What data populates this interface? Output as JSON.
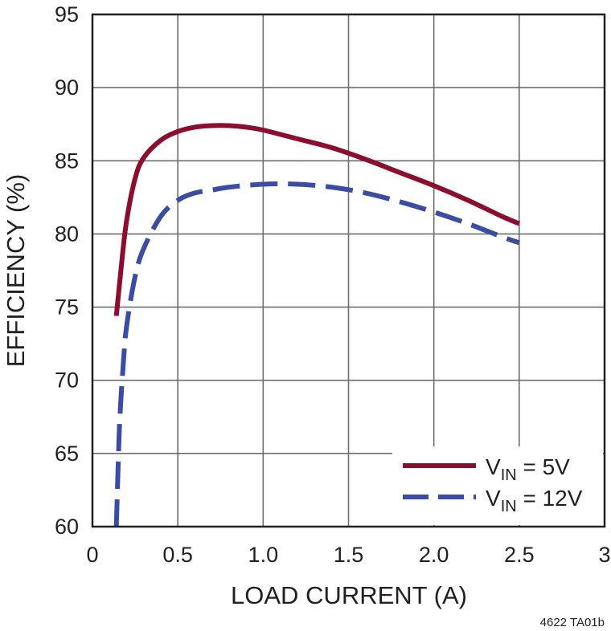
{
  "chart_data": {
    "type": "line",
    "title": "",
    "xlabel": "LOAD CURRENT (A)",
    "ylabel": "EFFICIENCY (%)",
    "xlim": [
      0,
      3
    ],
    "ylim": [
      60,
      95
    ],
    "x_ticks": [
      0,
      0.5,
      1.0,
      1.5,
      2.0,
      2.5,
      3
    ],
    "x_tick_labels": [
      "0",
      "0.5",
      "1.0",
      "1.5",
      "2.0",
      "2.5",
      "3"
    ],
    "y_ticks": [
      60,
      65,
      70,
      75,
      80,
      85,
      90,
      95
    ],
    "y_tick_labels": [
      "60",
      "65",
      "70",
      "75",
      "80",
      "85",
      "90",
      "95"
    ],
    "grid": true,
    "legend_position": "bottom-right",
    "series": [
      {
        "name": "VIN = 5V",
        "legend": {
          "main": "V",
          "sub": "IN",
          "rest": " = 5V"
        },
        "color": "#8b0e2e",
        "style": "solid",
        "x": [
          0.14,
          0.17,
          0.2,
          0.25,
          0.3,
          0.4,
          0.5,
          0.6,
          0.7,
          0.8,
          0.9,
          1.0,
          1.2,
          1.4,
          1.6,
          1.8,
          2.0,
          2.2,
          2.4,
          2.5
        ],
        "y": [
          74.4,
          77.9,
          80.9,
          83.8,
          85.2,
          86.4,
          87.0,
          87.3,
          87.4,
          87.4,
          87.3,
          87.1,
          86.5,
          85.9,
          85.1,
          84.2,
          83.3,
          82.3,
          81.2,
          80.7
        ]
      },
      {
        "name": "VIN = 12V",
        "legend": {
          "main": "V",
          "sub": "IN",
          "rest": " = 12V"
        },
        "color": "#3b4da3",
        "style": "dashed",
        "x": [
          0.14,
          0.15,
          0.16,
          0.18,
          0.2,
          0.25,
          0.3,
          0.4,
          0.5,
          0.6,
          0.7,
          0.8,
          1.0,
          1.2,
          1.4,
          1.6,
          1.8,
          2.0,
          2.2,
          2.4,
          2.5
        ],
        "y": [
          60.0,
          63.9,
          67.3,
          71.0,
          73.7,
          77.1,
          79.0,
          81.2,
          82.3,
          82.8,
          83.0,
          83.2,
          83.4,
          83.4,
          83.2,
          82.8,
          82.2,
          81.5,
          80.7,
          79.8,
          79.4
        ]
      }
    ]
  },
  "figure_id": "4622 TA01b"
}
